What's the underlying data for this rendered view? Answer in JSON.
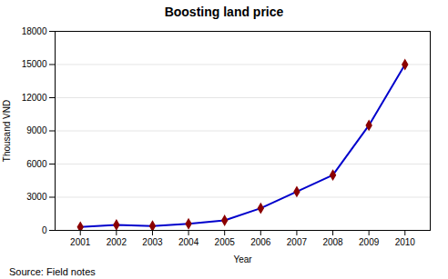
{
  "chart_data": {
    "type": "line",
    "title": "Boosting land price",
    "xlabel": "Year",
    "ylabel": "Thousand VND",
    "caption": "Source: Field notes",
    "x": [
      2001,
      2002,
      2003,
      2004,
      2005,
      2006,
      2007,
      2008,
      2009,
      2010
    ],
    "values": [
      300,
      500,
      400,
      600,
      900,
      2000,
      3500,
      5000,
      9500,
      15000
    ],
    "color": "#0000CC",
    "marker": "diamond",
    "colors": [
      "#8B0000",
      "#8B0000",
      "#8B0000",
      "#8B0000",
      "#8B0000",
      "#8B0000",
      "#8B0000",
      "#8B0000",
      "#8B0000",
      "#8B0000"
    ],
    "xlim": [
      2000.3,
      2010.7
    ],
    "xticks": [
      2001,
      2002,
      2003,
      2004,
      2005,
      2006,
      2007,
      2008,
      2009,
      2010
    ],
    "ylim": [
      0,
      18000
    ],
    "yticks": [
      0,
      3000,
      6000,
      9000,
      12000,
      15000,
      18000
    ],
    "grid": true
  }
}
